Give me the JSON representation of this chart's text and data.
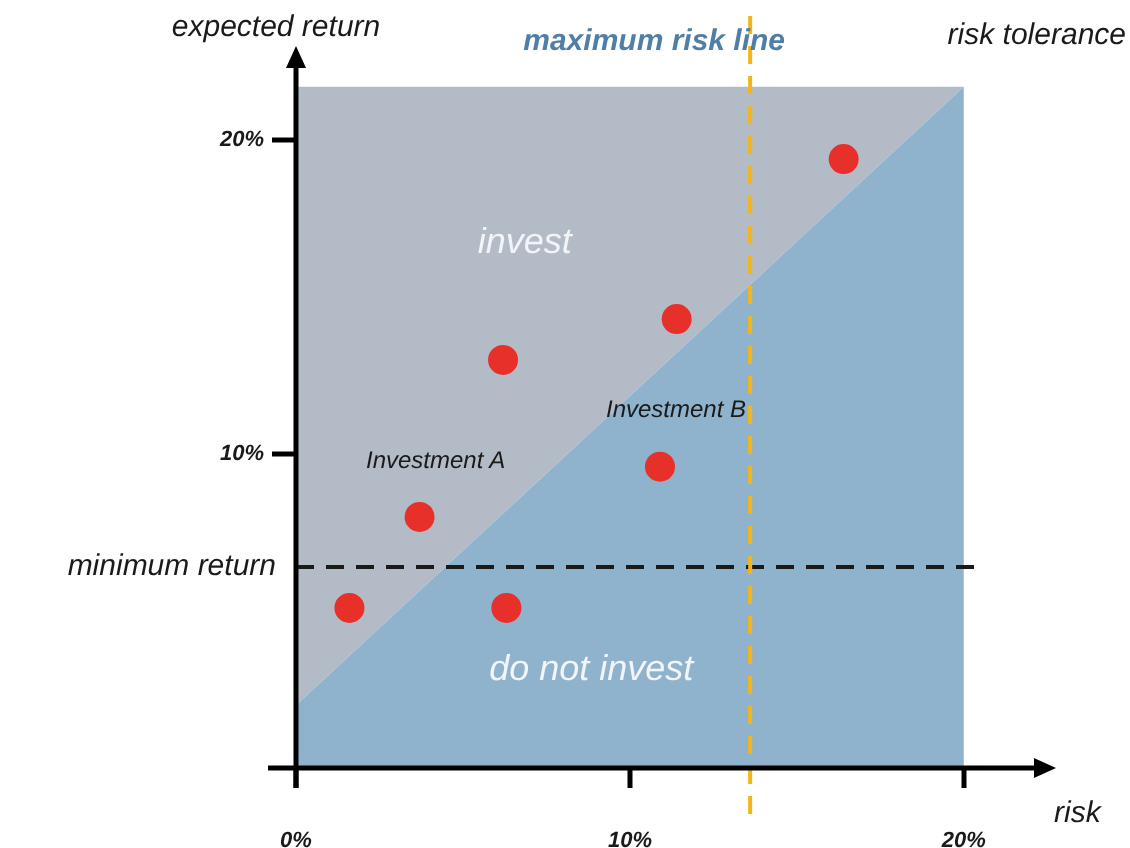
{
  "chart_data": {
    "type": "scatter",
    "xlabel": "risk",
    "ylabel": "expected return",
    "xlim": [
      0,
      22.1
    ],
    "ylim": [
      0,
      22.3
    ],
    "xticks": [
      {
        "value": 0,
        "label": "0%"
      },
      {
        "value": 10,
        "label": "10%"
      },
      {
        "value": 20,
        "label": "20%"
      }
    ],
    "yticks": [
      {
        "value": 10,
        "label": "10%"
      },
      {
        "value": 20,
        "label": "20%"
      }
    ],
    "grid": false,
    "legend": false,
    "marker": "circle",
    "stacked": true,
    "series": [
      {
        "type": "area",
        "color": "#8fb3cc",
        "marker": "none",
        "x": [
          0,
          20
        ],
        "values": [
          2.0,
          21.7
        ]
      },
      {
        "type": "area",
        "color": "#b3bcc6",
        "marker": "none",
        "x": [
          0,
          20
        ],
        "values": [
          19.7,
          0
        ]
      },
      {
        "type": "scatter",
        "color": "#e8302a",
        "x": [
          1.6,
          3.7,
          6.2,
          6.3,
          10.9,
          11.4,
          16.4
        ],
        "values": [
          5.1,
          8.0,
          13.0,
          5.1,
          9.6,
          14.3,
          19.4
        ]
      }
    ],
    "ref_lines": [
      {
        "axis": "y",
        "value": 6.4,
        "label": "minimum return",
        "color": "#1a1a1a",
        "line_style": "dashed"
      },
      {
        "axis": "x",
        "value": 13.6,
        "label": "maximum risk line",
        "color": "#f5b417",
        "line_style": "dashed"
      }
    ],
    "annotations": [
      "risk tolerance",
      "invest",
      "do not invest",
      {
        "text": "Investment A",
        "x": 3.7,
        "y": 8.0
      },
      {
        "text": "Investment B",
        "x": 10.9,
        "y": 9.6
      }
    ]
  }
}
